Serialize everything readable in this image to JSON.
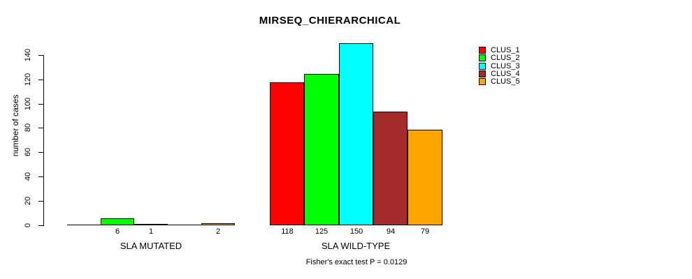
{
  "title": "MIRSEQ_CHIERARCHICAL",
  "chart_data": {
    "type": "bar",
    "grouped": true,
    "title": "MIRSEQ_CHIERARCHICAL",
    "xlabel": "",
    "ylabel": "number of cases",
    "categories": [
      "SLA MUTATED",
      "SLA WILD-TYPE"
    ],
    "series": [
      {
        "name": "CLUS_1",
        "color": "#FF0000",
        "values": [
          0,
          118
        ]
      },
      {
        "name": "CLUS_2",
        "color": "#00FF00",
        "values": [
          6,
          125
        ]
      },
      {
        "name": "CLUS_3",
        "color": "#00FFFF",
        "values": [
          1,
          150
        ]
      },
      {
        "name": "CLUS_4",
        "color": "#A52A2A",
        "values": [
          0,
          94
        ]
      },
      {
        "name": "CLUS_5",
        "color": "#FFA500",
        "values": [
          2,
          79
        ]
      }
    ],
    "bar_value_labels_shown": [
      "6",
      "1",
      "2",
      "118",
      "125",
      "150",
      "94",
      "79"
    ],
    "zero_value_labels_hidden": true,
    "yticks": [
      0,
      20,
      40,
      60,
      80,
      100,
      120,
      140
    ],
    "ylim": [
      0,
      150
    ],
    "grid": false,
    "legend_position": "top-right",
    "annotation": "Fisher's exact test P = 0.0129"
  }
}
